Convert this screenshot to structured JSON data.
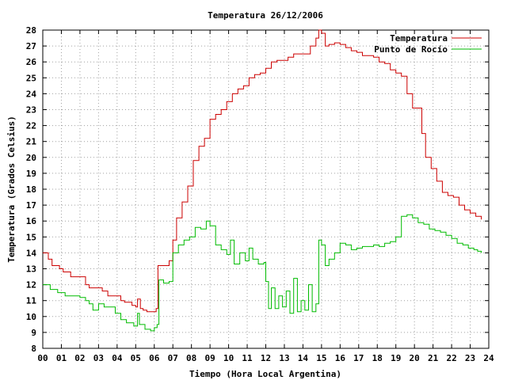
{
  "chart_data": {
    "type": "line",
    "title": "Temperatura 26/12/2006",
    "xlabel": "Tiempo (Hora Local Argentina)",
    "ylabel": "Temperatura (Grados Celsius)",
    "xlim": [
      0,
      24
    ],
    "ylim": [
      8,
      28
    ],
    "xticks": [
      0,
      1,
      2,
      3,
      4,
      5,
      6,
      7,
      8,
      9,
      10,
      11,
      12,
      13,
      14,
      15,
      16,
      17,
      18,
      19,
      20,
      21,
      22,
      23,
      24
    ],
    "xtick_labels": [
      "00",
      "01",
      "02",
      "03",
      "04",
      "05",
      "06",
      "07",
      "08",
      "09",
      "10",
      "11",
      "12",
      "13",
      "14",
      "15",
      "16",
      "17",
      "18",
      "19",
      "20",
      "21",
      "22",
      "23",
      "24"
    ],
    "yticks": [
      8,
      9,
      10,
      11,
      12,
      13,
      14,
      15,
      16,
      17,
      18,
      19,
      20,
      21,
      22,
      23,
      24,
      25,
      26,
      27,
      28
    ],
    "grid": true,
    "legend_position": "top-right",
    "series": [
      {
        "name": "Temperatura",
        "color": "#cc0000",
        "x": [
          0,
          0.3,
          0.5,
          0.9,
          1.1,
          1.5,
          2.0,
          2.3,
          2.5,
          2.9,
          3.2,
          3.5,
          3.9,
          4.2,
          4.4,
          4.8,
          5.0,
          5.1,
          5.25,
          5.4,
          5.6,
          5.9,
          6.1,
          6.2,
          6.5,
          6.8,
          7.0,
          7.2,
          7.5,
          7.8,
          8.1,
          8.4,
          8.7,
          9.0,
          9.3,
          9.6,
          9.9,
          10.2,
          10.5,
          10.8,
          11.1,
          11.4,
          11.7,
          12.0,
          12.3,
          12.6,
          12.9,
          13.2,
          13.5,
          13.8,
          14.1,
          14.4,
          14.7,
          14.85,
          15.0,
          15.2,
          15.4,
          15.7,
          16.0,
          16.3,
          16.6,
          16.9,
          17.2,
          17.5,
          17.8,
          18.1,
          18.4,
          18.7,
          19.0,
          19.3,
          19.6,
          19.9,
          20.2,
          20.4,
          20.6,
          20.9,
          21.2,
          21.5,
          21.8,
          22.1,
          22.4,
          22.7,
          23.0,
          23.3,
          23.6
        ],
        "values": [
          14.0,
          13.6,
          13.2,
          13.0,
          12.8,
          12.5,
          12.5,
          12.0,
          11.8,
          11.8,
          11.6,
          11.3,
          11.3,
          11.0,
          10.9,
          10.7,
          10.6,
          11.1,
          10.5,
          10.4,
          10.3,
          10.3,
          10.5,
          13.2,
          13.2,
          13.5,
          14.8,
          16.2,
          17.2,
          18.2,
          19.8,
          20.7,
          21.2,
          22.4,
          22.7,
          23.0,
          23.5,
          24.0,
          24.3,
          24.5,
          25.0,
          25.2,
          25.3,
          25.6,
          26.0,
          26.1,
          26.1,
          26.3,
          26.5,
          26.5,
          26.5,
          27.0,
          27.5,
          28.0,
          27.8,
          27.0,
          27.1,
          27.2,
          27.1,
          26.9,
          26.7,
          26.6,
          26.4,
          26.4,
          26.3,
          26.0,
          25.9,
          25.5,
          25.3,
          25.1,
          24.0,
          23.1,
          23.1,
          21.5,
          20.0,
          19.3,
          18.5,
          17.8,
          17.6,
          17.5,
          17.0,
          16.7,
          16.5,
          16.3,
          16.1
        ]
      },
      {
        "name": "Punto de Rocío",
        "color": "#00bb00",
        "x": [
          0,
          0.4,
          0.8,
          1.2,
          1.6,
          2.0,
          2.3,
          2.5,
          2.7,
          3.0,
          3.3,
          3.6,
          3.9,
          4.2,
          4.5,
          4.9,
          5.0,
          5.1,
          5.2,
          5.5,
          5.8,
          6.0,
          6.15,
          6.25,
          6.5,
          6.8,
          7.0,
          7.3,
          7.6,
          7.9,
          8.2,
          8.5,
          8.8,
          9.0,
          9.3,
          9.6,
          9.9,
          10.1,
          10.3,
          10.6,
          10.9,
          11.1,
          11.3,
          11.6,
          11.9,
          12.0,
          12.15,
          12.3,
          12.5,
          12.7,
          12.9,
          13.1,
          13.3,
          13.5,
          13.7,
          13.9,
          14.1,
          14.3,
          14.5,
          14.7,
          14.85,
          15.0,
          15.2,
          15.4,
          15.7,
          16.0,
          16.3,
          16.6,
          16.9,
          17.2,
          17.5,
          17.8,
          18.1,
          18.4,
          18.7,
          19.0,
          19.3,
          19.6,
          19.9,
          20.2,
          20.5,
          20.8,
          21.1,
          21.4,
          21.7,
          22.0,
          22.3,
          22.6,
          22.9,
          23.2,
          23.4,
          23.6
        ],
        "values": [
          12.0,
          11.7,
          11.5,
          11.3,
          11.3,
          11.2,
          11.0,
          10.8,
          10.4,
          10.8,
          10.6,
          10.6,
          10.2,
          9.8,
          9.6,
          9.4,
          9.4,
          10.2,
          9.5,
          9.2,
          9.1,
          9.3,
          9.5,
          12.3,
          12.1,
          12.2,
          14.0,
          14.5,
          14.8,
          15.0,
          15.6,
          15.5,
          16.0,
          15.7,
          14.5,
          14.2,
          13.9,
          14.8,
          13.3,
          14.0,
          13.5,
          14.3,
          13.6,
          13.3,
          13.4,
          12.2,
          10.5,
          11.8,
          10.5,
          11.3,
          10.6,
          11.6,
          10.2,
          12.4,
          10.3,
          11.0,
          10.4,
          12.0,
          10.3,
          10.8,
          14.8,
          14.5,
          13.2,
          13.6,
          14.0,
          14.6,
          14.5,
          14.2,
          14.3,
          14.4,
          14.4,
          14.5,
          14.4,
          14.6,
          14.7,
          15.0,
          16.3,
          16.4,
          16.2,
          15.9,
          15.8,
          15.5,
          15.4,
          15.3,
          15.1,
          14.9,
          14.6,
          14.5,
          14.3,
          14.2,
          14.1,
          14.0
        ]
      }
    ]
  }
}
